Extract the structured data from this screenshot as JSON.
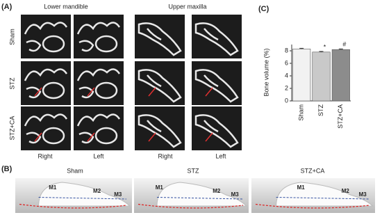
{
  "panel_a": {
    "label": "(A)",
    "groups": [
      "Lower mandible",
      "Upper maxilla"
    ],
    "rows": [
      "Sham",
      "STZ",
      "STZ+CA"
    ],
    "columns": [
      "Right",
      "Left",
      "Right",
      "Left"
    ]
  },
  "chart_data": {
    "type": "bar",
    "label": "(C)",
    "y_label": "Bone volume (%)",
    "categories": [
      "Sham",
      "STZ",
      "STZ+CA"
    ],
    "values": [
      8.3,
      7.8,
      8.2
    ],
    "errors": [
      0.1,
      0.1,
      0.1
    ],
    "colors": [
      "#f2f2f2",
      "#c9c9c9",
      "#8c8c8c"
    ],
    "annotations": [
      "",
      "*",
      "#"
    ],
    "ylim": [
      0,
      9
    ],
    "yticks": [
      0,
      2,
      4,
      6,
      8
    ]
  },
  "panel_b": {
    "label": "(B)",
    "panels": [
      {
        "title": "Sham",
        "teeth": [
          "M1",
          "M2",
          "M3"
        ]
      },
      {
        "title": "STZ",
        "teeth": [
          "M1",
          "M2",
          "M3"
        ]
      },
      {
        "title": "STZ+CA",
        "teeth": [
          "M1",
          "M2",
          "M3"
        ]
      }
    ]
  }
}
